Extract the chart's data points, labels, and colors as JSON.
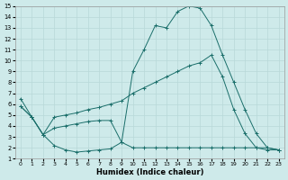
{
  "xlabel": "Humidex (Indice chaleur)",
  "background_color": "#ceeaea",
  "grid_color": "#b8d8d8",
  "line_color": "#1a6e6a",
  "xlim": [
    -0.5,
    23.5
  ],
  "ylim": [
    1,
    15
  ],
  "xticks": [
    0,
    1,
    2,
    3,
    4,
    5,
    6,
    7,
    8,
    9,
    10,
    11,
    12,
    13,
    14,
    15,
    16,
    17,
    18,
    19,
    20,
    21,
    22,
    23
  ],
  "yticks": [
    1,
    2,
    3,
    4,
    5,
    6,
    7,
    8,
    9,
    10,
    11,
    12,
    13,
    14,
    15
  ],
  "series1_x": [
    0,
    1,
    2,
    3,
    4,
    5,
    6,
    7,
    8,
    9,
    10,
    11,
    12,
    13,
    14,
    15,
    16,
    17,
    18,
    19,
    20,
    21,
    22,
    23
  ],
  "series1_y": [
    6.5,
    4.8,
    3.2,
    2.2,
    1.8,
    1.6,
    1.7,
    1.8,
    1.9,
    2.5,
    9.0,
    11.0,
    13.2,
    13.0,
    14.5,
    15.0,
    14.8,
    13.2,
    10.5,
    8.0,
    5.5,
    3.3,
    2.0,
    1.8
  ],
  "series2_x": [
    0,
    1,
    2,
    3,
    4,
    5,
    6,
    7,
    8,
    9,
    10,
    11,
    12,
    13,
    14,
    15,
    16,
    17,
    18,
    19,
    20,
    21,
    22,
    23
  ],
  "series2_y": [
    5.8,
    4.8,
    3.2,
    4.8,
    5.0,
    5.2,
    5.5,
    5.7,
    6.0,
    6.3,
    7.0,
    7.5,
    8.0,
    8.5,
    9.0,
    9.5,
    9.8,
    10.5,
    8.5,
    5.5,
    3.3,
    2.0,
    1.8,
    1.8
  ],
  "series3_x": [
    0,
    1,
    2,
    3,
    4,
    5,
    6,
    7,
    8,
    9,
    10,
    11,
    12,
    13,
    14,
    15,
    16,
    17,
    18,
    19,
    20,
    21,
    22,
    23
  ],
  "series3_y": [
    5.8,
    4.8,
    3.2,
    3.8,
    4.0,
    4.2,
    4.4,
    4.5,
    4.5,
    2.5,
    2.0,
    2.0,
    2.0,
    2.0,
    2.0,
    2.0,
    2.0,
    2.0,
    2.0,
    2.0,
    2.0,
    2.0,
    2.0,
    1.8
  ]
}
